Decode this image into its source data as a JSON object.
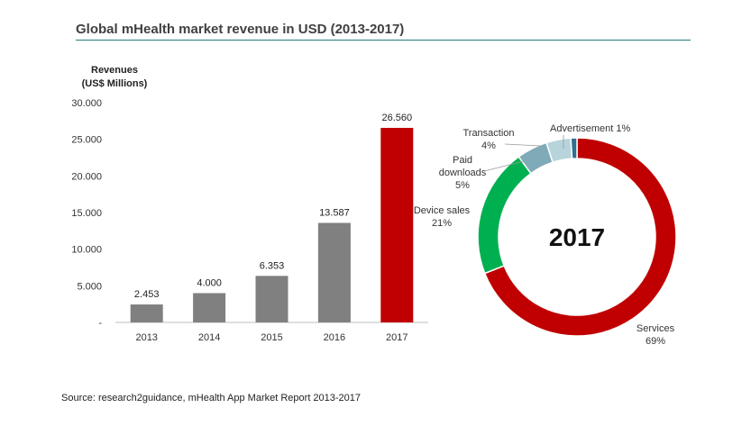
{
  "title": "Global mHealth market revenue in USD (2013-2017)",
  "source": "Source: research2guidance, mHealth App Market Report 2013-2017",
  "chart_data": [
    {
      "type": "bar",
      "ylabel_lines": [
        "Revenues",
        "(US$ Millions)"
      ],
      "ylim": [
        0,
        30000
      ],
      "yticks": [
        {
          "value": 0,
          "label": "-"
        },
        {
          "value": 5000,
          "label": "5.000"
        },
        {
          "value": 10000,
          "label": "10.000"
        },
        {
          "value": 15000,
          "label": "15.000"
        },
        {
          "value": 20000,
          "label": "20.000"
        },
        {
          "value": 25000,
          "label": "25.000"
        },
        {
          "value": 30000,
          "label": "30.000"
        }
      ],
      "categories": [
        "2013",
        "2014",
        "2015",
        "2016",
        "2017"
      ],
      "values": [
        2453,
        4000,
        6353,
        13587,
        26560
      ],
      "value_labels": [
        "2.453",
        "4.000",
        "6.353",
        "13.587",
        "26.560"
      ],
      "colors": [
        "#808080",
        "#808080",
        "#808080",
        "#808080",
        "#c00000"
      ],
      "grid": false
    },
    {
      "type": "pie",
      "donut": true,
      "center_label": "2017",
      "slices": [
        {
          "name": "Services",
          "pct": "69%",
          "value": 69,
          "color": "#c00000"
        },
        {
          "name": "Device sales",
          "pct": "21%",
          "value": 21,
          "color": "#00b050"
        },
        {
          "name": "Paid downloads",
          "name_lines": [
            "Paid",
            "downloads"
          ],
          "pct": "5%",
          "value": 5,
          "color": "#7faab8"
        },
        {
          "name": "Transaction",
          "pct": "4%",
          "value": 4,
          "color": "#b7d3dc"
        },
        {
          "name": "Advertisement",
          "pct": "1%",
          "value": 1,
          "color": "#31708f"
        }
      ]
    }
  ]
}
